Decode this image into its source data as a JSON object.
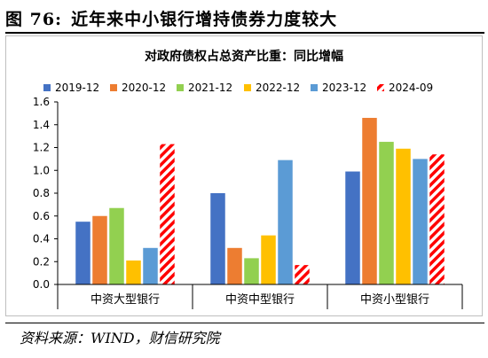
{
  "figure": {
    "number": "图 76:",
    "title": "近年来中小银行增持债券力度较大",
    "source": "资料来源：WIND，财信研究院"
  },
  "chart_data": {
    "type": "bar",
    "title": "对政府债权占总资产比重：同比增幅",
    "categories": [
      "中资大型银行",
      "中资中型银行",
      "中资小型银行"
    ],
    "series": [
      {
        "name": "2019-12",
        "color": "#4472C4",
        "pattern": "solid",
        "values": [
          0.55,
          0.8,
          0.99
        ]
      },
      {
        "name": "2020-12",
        "color": "#ED7D31",
        "pattern": "solid",
        "values": [
          0.6,
          0.32,
          1.46
        ]
      },
      {
        "name": "2021-12",
        "color": "#92D050",
        "pattern": "solid",
        "values": [
          0.67,
          0.23,
          1.25
        ]
      },
      {
        "name": "2022-12",
        "color": "#FFC000",
        "pattern": "solid",
        "values": [
          0.21,
          0.43,
          1.19
        ]
      },
      {
        "name": "2023-12",
        "color": "#5B9BD5",
        "pattern": "solid",
        "values": [
          0.32,
          1.09,
          1.1
        ]
      },
      {
        "name": "2024-09",
        "color": "#FF0000",
        "pattern": "diagonal-stripes",
        "values": [
          1.23,
          0.17,
          1.14
        ]
      }
    ],
    "ylim": [
      0,
      1.6
    ],
    "yticks": [
      "0.0",
      "0.2",
      "0.4",
      "0.6",
      "0.8",
      "1.0",
      "1.2",
      "1.4",
      "1.6"
    ],
    "legend_position": "top",
    "grid": false
  }
}
